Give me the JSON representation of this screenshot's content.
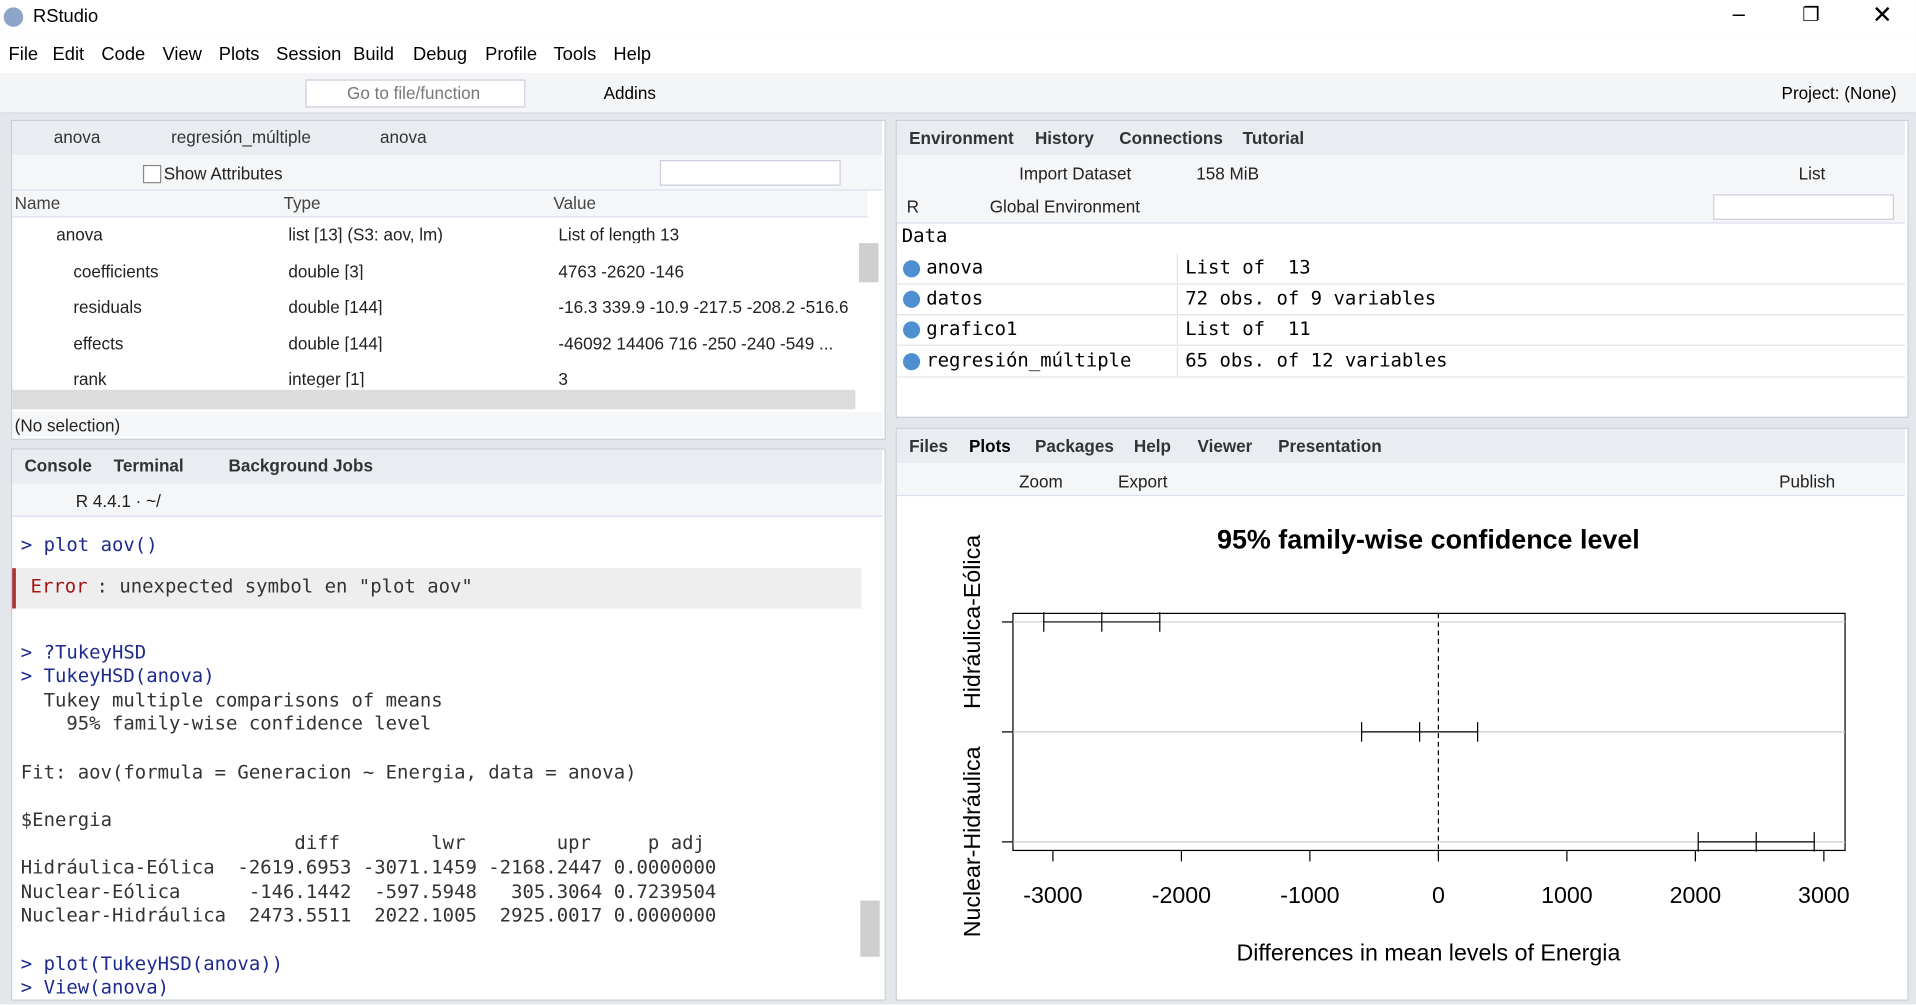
{
  "window_title": "RStudio",
  "menu": [
    "File",
    "Edit",
    "Code",
    "View",
    "Plots",
    "Session",
    "Build",
    "Debug",
    "Profile",
    "Tools",
    "Help"
  ],
  "toolbar": {
    "go_to": "Go to file/function",
    "addins": "Addins",
    "project": "Project: (None)"
  },
  "source_pane": {
    "tabs": [
      "anova",
      "regresión_múltiple",
      "anova"
    ],
    "show_attributes": "Show Attributes",
    "columns": [
      "Name",
      "Type",
      "Value"
    ],
    "rows": [
      [
        "anova",
        "list [13] (S3: aov, lm)",
        "List of length 13"
      ],
      [
        "coefficients",
        "double [3]",
        "4763 -2620 -146"
      ],
      [
        "residuals",
        "double [144]",
        "-16.3 339.9 -10.9 -217.5 -208.2 -516.6"
      ],
      [
        "effects",
        "double [144]",
        "-46092 14406 716 -250 -240 -549 ..."
      ],
      [
        "rank",
        "integer [1]",
        "3"
      ]
    ],
    "status": "(No selection)"
  },
  "console_pane": {
    "tabs": [
      "Console",
      "Terminal",
      "Background Jobs"
    ],
    "r_version": "R 4.4.1 · ~/",
    "lines": [
      "> plot aov()",
      "Error",
      ": unexpected symbol en \"plot aov\"",
      "> ?TukeyHSD",
      "> TukeyHSD(anova)",
      "  Tukey multiple comparisons of means",
      "    95% family-wise confidence level",
      "Fit: aov(formula = Generacion ~ Energia, data = anova)",
      "$Energia",
      "                        diff        lwr        upr     p adj",
      "Hidráulica-Eólica  -2619.6953 -3071.1459 -2168.2447 0.0000000",
      "Nuclear-Eólica      -146.1442  -597.5948   305.3064 0.7239504",
      "Nuclear-Hidráulica  2473.5511  2022.1005  2925.0017 0.0000000",
      "> plot(TukeyHSD(anova))",
      "> View(anova)"
    ]
  },
  "env_pane": {
    "tabs": [
      "Environment",
      "History",
      "Connections",
      "Tutorial"
    ],
    "import": "Import Dataset",
    "memory": "158 MiB",
    "view": "List",
    "lang": "R",
    "env": "Global Environment",
    "section": "Data",
    "rows": [
      [
        "anova",
        "List of  13"
      ],
      [
        "datos",
        "72 obs. of 9 variables"
      ],
      [
        "grafico1",
        "List of  11"
      ],
      [
        "regresión_múltiple",
        "65 obs. of 12 variables"
      ]
    ]
  },
  "files_pane": {
    "tabs": [
      "Files",
      "Plots",
      "Packages",
      "Help",
      "Viewer",
      "Presentation"
    ],
    "zoom": "Zoom",
    "export": "Export",
    "publish": "Publish"
  },
  "plot": {
    "type": "interval",
    "title": "95% family-wise confidence level",
    "xlabel": "Differences in mean levels of Energia",
    "categories": [
      "Hidráulica-Eólica",
      null,
      "Nuclear-Hidráulica"
    ],
    "diff": [
      -2619.6953,
      -146.1442,
      2473.5511
    ],
    "lwr": [
      -3071.1459,
      -597.5948,
      2022.1005
    ],
    "upr": [
      -2168.2447,
      305.3064,
      2925.0017
    ],
    "xlim": [
      -3311,
      3165
    ],
    "xticks": [
      -3000,
      -2000,
      -1000,
      0,
      1000,
      2000,
      3000
    ]
  }
}
